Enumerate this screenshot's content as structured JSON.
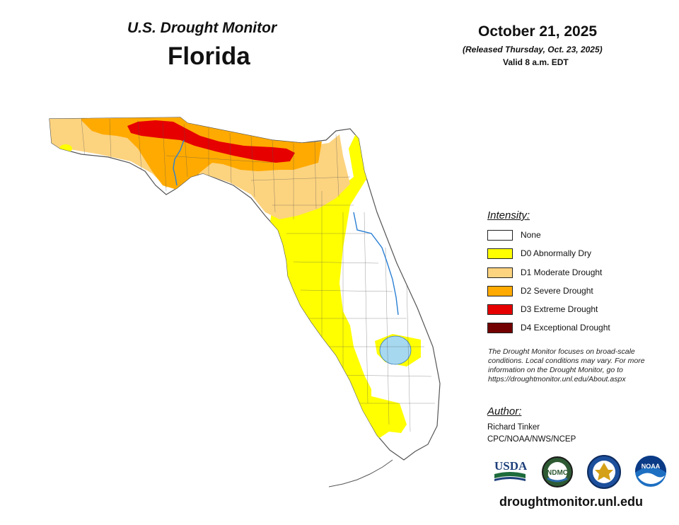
{
  "header": {
    "subtitle": "U.S. Drought Monitor",
    "title": "Florida",
    "date": "October 21, 2025",
    "released": "(Released Thursday, Oct. 23, 2025)",
    "valid": "Valid 8 a.m. EDT"
  },
  "legend": {
    "title": "Intensity:",
    "items": [
      {
        "label": "None",
        "color": "#ffffff"
      },
      {
        "label": "D0 Abnormally Dry",
        "color": "#ffff00"
      },
      {
        "label": "D1 Moderate Drought",
        "color": "#fcd37f"
      },
      {
        "label": "D2 Severe Drought",
        "color": "#ffaa00"
      },
      {
        "label": "D3 Extreme Drought",
        "color": "#e60000"
      },
      {
        "label": "D4 Exceptional Drought",
        "color": "#730000"
      }
    ]
  },
  "note": "The Drought Monitor focuses on broad-scale conditions. Local conditions may vary. For more information on the Drought Monitor, go to https://droughtmonitor.unl.edu/About.aspx",
  "author": {
    "title": "Author:",
    "name": "Richard Tinker",
    "org": "CPC/NOAA/NWS/NCEP"
  },
  "logos": [
    {
      "name": "usda-logo",
      "text": "USDA"
    },
    {
      "name": "ndmc-logo",
      "text": "NDMC"
    },
    {
      "name": "doc-logo",
      "text": ""
    },
    {
      "name": "noaa-logo",
      "text": "NOAA"
    }
  ],
  "website": "droughtmonitor.unl.edu",
  "map_colors": {
    "none": "#ffffff",
    "d0": "#ffff00",
    "d1": "#fcd37f",
    "d2": "#ffaa00",
    "d3": "#e60000",
    "water": "#a6d8f0",
    "river": "#2a7fd4",
    "border": "#555555"
  }
}
